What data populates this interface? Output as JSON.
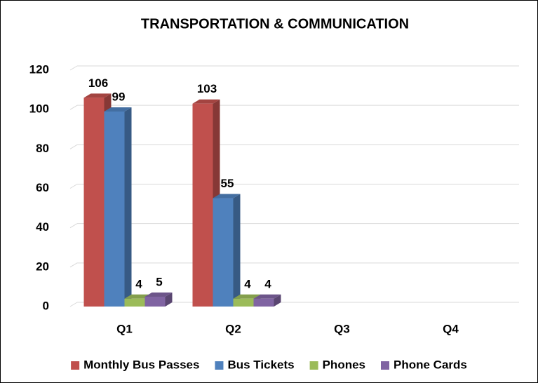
{
  "chart_data": {
    "type": "bar3d",
    "title": "TRANSPORTATION & COMMUNICATION",
    "categories": [
      "Q1",
      "Q2",
      "Q3",
      "Q4"
    ],
    "series": [
      {
        "name": "Monthly Bus Passes",
        "color": "#c0504d",
        "values": [
          106,
          103,
          null,
          null
        ]
      },
      {
        "name": "Bus Tickets",
        "color": "#4f81bd",
        "values": [
          99,
          55,
          null,
          null
        ]
      },
      {
        "name": "Phones",
        "color": "#9bbb59",
        "values": [
          4,
          4,
          null,
          null
        ]
      },
      {
        "name": "Phone Cards",
        "color": "#8064a2",
        "values": [
          5,
          4,
          null,
          null
        ]
      }
    ],
    "ylim": [
      0,
      120
    ],
    "yticks": [
      0,
      20,
      40,
      60,
      80,
      100,
      120
    ],
    "grid": true,
    "legend": "bottom"
  }
}
